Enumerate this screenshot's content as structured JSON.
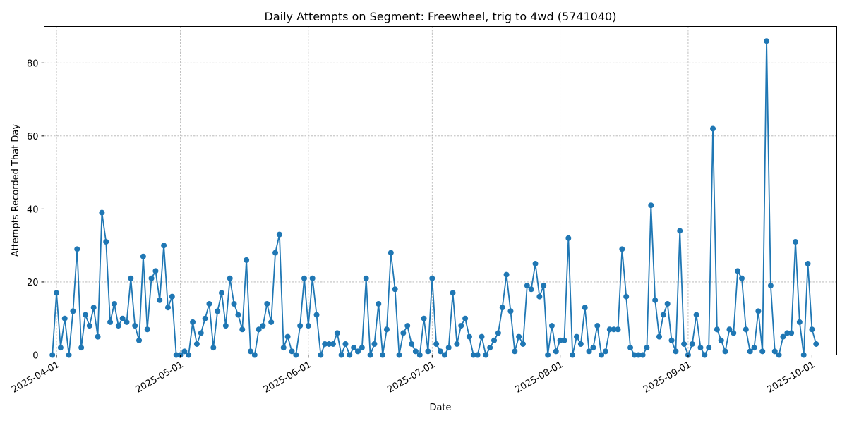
{
  "chart_data": {
    "type": "line",
    "title": "Daily Attempts on Segment: Freewheel, trig to 4wd (5741040)",
    "xlabel": "Date",
    "ylabel": "Attempts Recorded That Day",
    "x_start": "2025-03-31",
    "x_range_days": [
      -2,
      190
    ],
    "ylim": [
      0,
      90
    ],
    "y_ticks": [
      0,
      20,
      40,
      60,
      80
    ],
    "x_ticks": [
      {
        "label": "2025-04-01",
        "day": 1
      },
      {
        "label": "2025-05-01",
        "day": 31
      },
      {
        "label": "2025-06-01",
        "day": 62
      },
      {
        "label": "2025-07-01",
        "day": 92
      },
      {
        "label": "2025-08-01",
        "day": 123
      },
      {
        "label": "2025-09-01",
        "day": 154
      },
      {
        "label": "2025-10-01",
        "day": 184
      }
    ],
    "grid": true,
    "series": [
      {
        "name": "attempts",
        "color": "#1f77b4",
        "values": [
          0,
          17,
          2,
          10,
          0,
          12,
          29,
          2,
          11,
          8,
          13,
          5,
          39,
          31,
          9,
          14,
          8,
          10,
          9,
          21,
          8,
          4,
          27,
          7,
          21,
          23,
          15,
          30,
          13,
          16,
          0,
          0,
          1,
          0,
          9,
          3,
          6,
          10,
          14,
          2,
          12,
          17,
          8,
          21,
          14,
          11,
          7,
          26,
          1,
          0,
          7,
          8,
          14,
          9,
          28,
          33,
          2,
          5,
          1,
          0,
          8,
          21,
          8,
          21,
          11,
          0,
          3,
          3,
          3,
          6,
          0,
          3,
          0,
          2,
          1,
          2,
          21,
          0,
          3,
          14,
          0,
          7,
          28,
          18,
          0,
          6,
          8,
          3,
          1,
          0,
          10,
          1,
          21,
          3,
          1,
          0,
          2,
          17,
          3,
          8,
          10,
          5,
          0,
          0,
          5,
          0,
          2,
          4,
          6,
          13,
          22,
          12,
          1,
          5,
          3,
          19,
          18,
          25,
          16,
          19,
          0,
          8,
          1,
          4,
          4,
          32,
          0,
          5,
          3,
          13,
          1,
          2,
          8,
          0,
          1,
          7,
          7,
          7,
          29,
          16,
          2,
          0,
          0,
          0,
          2,
          41,
          15,
          5,
          11,
          14,
          4,
          1,
          34,
          3,
          0,
          3,
          11,
          2,
          0,
          2,
          62,
          7,
          4,
          1,
          7,
          6,
          23,
          21,
          7,
          1,
          2,
          12,
          1,
          86,
          19,
          1,
          0,
          5,
          6,
          6,
          31,
          9,
          0,
          25,
          7,
          3
        ]
      }
    ]
  }
}
